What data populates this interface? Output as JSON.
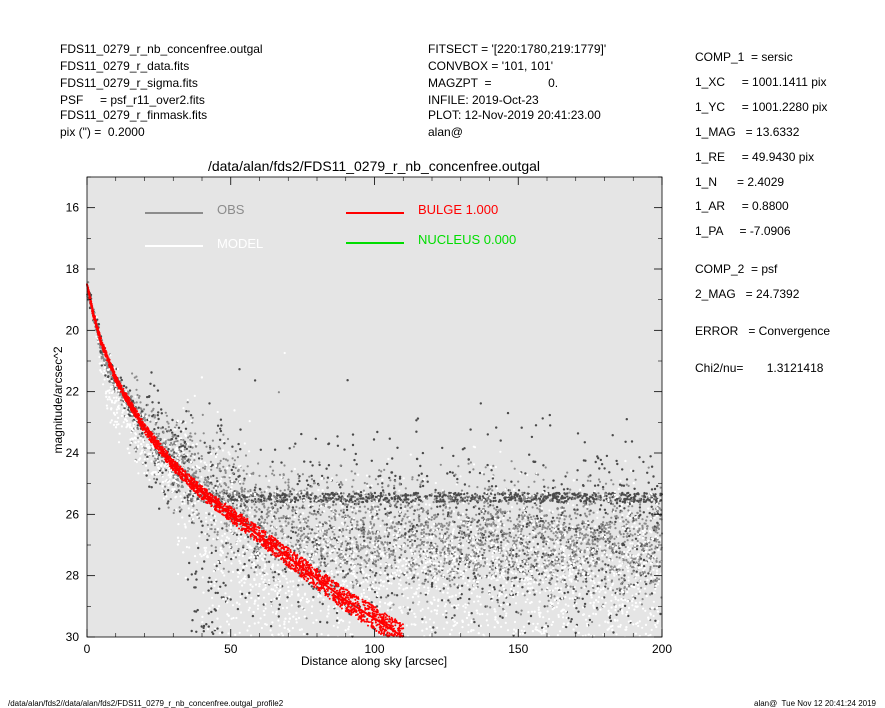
{
  "header_left": [
    "FDS11_0279_r_nb_concenfree.outgal",
    "FDS11_0279_r_data.fits",
    "FDS11_0279_r_sigma.fits",
    "PSF     = psf_r11_over2.fits",
    "FDS11_0279_r_finmask.fits",
    "pix (\") =  0.2000"
  ],
  "header_mid": [
    "FITSECT = '[220:1780,219:1779]'",
    "CONVBOX = '101, 101'",
    "MAGZPT  =                 0.",
    "INFILE: 2019-Oct-23",
    "PLOT: 12-Nov-2019 20:41:23.00",
    "alan@"
  ],
  "params": [
    "COMP_1  = sersic",
    "1_XC     = 1001.1411 pix",
    "1_YC     = 1001.2280 pix",
    "1_MAG   = 13.6332",
    "1_RE     = 49.9430 pix",
    "1_N      = 2.4029",
    "1_AR     = 0.8800",
    "1_PA     = -7.0906",
    "COMP_2  = psf",
    "2_MAG   = 24.7392",
    "ERROR   = Convergence",
    "Chi2/nu=       1.3121418"
  ],
  "footer_left": "/data/alan/fds2//data/alan/fds2/FDS11_0279_r_nb_concenfree.outgal_profile2",
  "footer_right": "alan@  Tue Nov 12 20:41:24 2019",
  "colors": {
    "plot_background": "#e5e5e5",
    "obs": "#8c8c8c",
    "obs_dark": "#4a4a4a",
    "model": "#ffffff",
    "bulge": "#ff0000",
    "nucleus": "#00dd00"
  },
  "chart_data": {
    "type": "scatter",
    "title": "/data/alan/fds2/FDS11_0279_r_nb_concenfree.outgal",
    "xlabel": "Distance along sky [arcsec]",
    "ylabel": "magnitude/arcsec^2",
    "xlim": [
      0,
      200
    ],
    "ylim": [
      30,
      15
    ],
    "y_inverted": true,
    "grid": false,
    "xticks": [
      "0",
      "50",
      "100",
      "150",
      "200"
    ],
    "yticks": [
      "16",
      "18",
      "20",
      "22",
      "24",
      "26",
      "28",
      "30"
    ],
    "legend": [
      {
        "name": "OBS",
        "color": "#8c8c8c"
      },
      {
        "name": "BULGE  1.000",
        "color": "#ff0000"
      },
      {
        "name": "MODEL",
        "color": "#ffffff"
      },
      {
        "name": "NUCLEUS  0.000",
        "color": "#00dd00"
      }
    ],
    "legend_position": "top",
    "series": [
      {
        "name": "OBS",
        "description": "data points spreading from ~18.5 at r=0 to a noisy floor ~25-30 beyond ~40 arcsec",
        "trend": {
          "x": [
            0,
            5,
            10,
            20,
            30,
            40,
            60,
            80,
            100,
            150,
            200
          ],
          "y": [
            18.6,
            20.6,
            21.7,
            23.2,
            24.2,
            25.0,
            26.2,
            26.6,
            26.7,
            26.9,
            27.0
          ]
        }
      },
      {
        "name": "MODEL",
        "description": "model points, white, overlapping data"
      },
      {
        "name": "BULGE  1.000",
        "description": "sersic profile band",
        "trend": {
          "x": [
            0,
            2,
            5,
            10,
            20,
            30,
            40,
            50,
            60,
            70,
            80,
            90,
            100,
            110
          ],
          "y": [
            18.5,
            19.4,
            20.4,
            21.6,
            23.2,
            24.4,
            25.3,
            26.0,
            26.7,
            27.4,
            28.1,
            28.8,
            29.4,
            30.0
          ]
        }
      }
    ]
  }
}
